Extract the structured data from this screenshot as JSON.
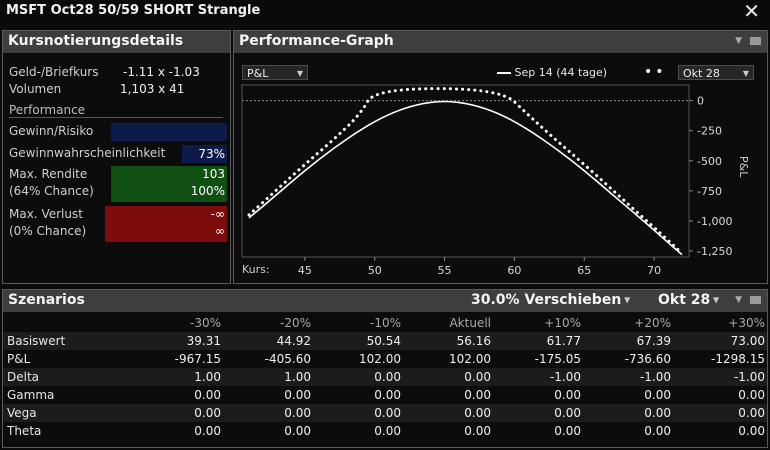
{
  "window": {
    "title": "MSFT Oct28 50/59 SHORT Strangle",
    "close_icon": "close-icon"
  },
  "left": {
    "title": "Kursnotierungsdetails",
    "bidask_label": "Geld-/Briefkurs",
    "bidask_value": "-1.11 x -1.03",
    "volume_label": "Volumen",
    "volume_value": "1,103 x 41",
    "performance_label": "Performance",
    "gewinn_risiko_label": "Gewinn/Risiko",
    "prob_label": "Gewinnwahrscheinlichkeit",
    "prob_value": "73%",
    "max_rendite_label": "Max. Rendite",
    "max_rendite_value": "103",
    "max_rendite_chance": "(64% Chance)",
    "max_rendite_chance_value": "100%",
    "max_verlust_label": "Max. Verlust",
    "max_verlust_value": "-∞",
    "max_verlust_chance": "(0% Chance)",
    "max_verlust_chance_value": "∞",
    "colors": {
      "blue": "#0e1a4a",
      "green": "#0f4f12",
      "red": "#7d0c0c"
    }
  },
  "graph": {
    "title": "Performance-Graph",
    "metric_dropdown": "P&L",
    "legend_line": "Sep 14 (44 tage)",
    "expiry_dropdown": "Okt 28",
    "y_axis_title": "P&L",
    "x_axis_prefix": "Kurs:"
  },
  "chart_data": {
    "type": "line",
    "xlabel": "Kurs:",
    "ylabel": "P&L",
    "x_ticks": [
      45,
      50,
      55,
      60,
      65,
      70
    ],
    "y_ticks": [
      0,
      -250,
      -500,
      -750,
      -1000,
      -1250
    ],
    "y_tick_labels": [
      "0",
      "-250",
      "-500",
      "-750",
      "-1,000",
      "-1,250"
    ],
    "xlim": [
      40.5,
      72.5
    ],
    "ylim": [
      -1300,
      130
    ],
    "series": [
      {
        "name": "Sep 14 (44 tage)",
        "style": "solid",
        "x": [
          41,
          43,
          45,
          47,
          49,
          51,
          53,
          55,
          57,
          59,
          61,
          63,
          65,
          67,
          69,
          71,
          72
        ],
        "y": [
          -975,
          -780,
          -580,
          -400,
          -240,
          -110,
          -30,
          0,
          -30,
          -110,
          -240,
          -400,
          -580,
          -780,
          -975,
          -1180,
          -1280
        ]
      },
      {
        "name": "Okt 28",
        "style": "dotted",
        "x": [
          41,
          43,
          45,
          47,
          49,
          50,
          59,
          61,
          63,
          65,
          67,
          69,
          71,
          72
        ],
        "y": [
          -950,
          -740,
          -530,
          -330,
          -110,
          100,
          100,
          -120,
          -330,
          -530,
          -740,
          -950,
          -1160,
          -1270
        ]
      }
    ]
  },
  "scenarios": {
    "title": "Szenarios",
    "shift_dropdown": "30.0% Verschieben",
    "expiry_dropdown": "Okt 28",
    "headers": [
      "",
      "-30%",
      "-20%",
      "-10%",
      "Aktuell",
      "+10%",
      "+20%",
      "+30%"
    ],
    "rows": [
      {
        "label": "Basiswert",
        "values": [
          "39.31",
          "44.92",
          "50.54",
          "56.16",
          "61.77",
          "67.39",
          "73.00"
        ]
      },
      {
        "label": "P&L",
        "values": [
          "-967.15",
          "-405.60",
          "102.00",
          "102.00",
          "-175.05",
          "-736.60",
          "-1298.15"
        ]
      },
      {
        "label": "Delta",
        "values": [
          "1.00",
          "1.00",
          "0.00",
          "0.00",
          "-1.00",
          "-1.00",
          "-1.00"
        ]
      },
      {
        "label": "Gamma",
        "values": [
          "0.00",
          "0.00",
          "0.00",
          "0.00",
          "0.00",
          "0.00",
          "0.00"
        ]
      },
      {
        "label": "Vega",
        "values": [
          "0.00",
          "0.00",
          "0.00",
          "0.00",
          "0.00",
          "0.00",
          "0.00"
        ]
      },
      {
        "label": "Theta",
        "values": [
          "0.00",
          "0.00",
          "0.00",
          "0.00",
          "0.00",
          "0.00",
          "0.00"
        ]
      }
    ]
  }
}
